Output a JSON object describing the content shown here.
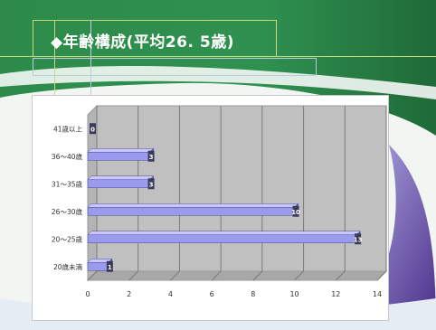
{
  "slide": {
    "title": "◆年齢構成(平均26. 5歳)",
    "colors": {
      "header_green": "#2d8a4a",
      "header_dark": "#1f6a38",
      "accent_line": "#c9d97a",
      "swoosh_purple": "#5a3e9a"
    }
  },
  "chart_data": {
    "type": "bar",
    "orientation": "horizontal",
    "style": "3d",
    "categories": [
      "41歳以上",
      "36～40歳",
      "31～35歳",
      "26～30歳",
      "20～25歳",
      "20歳未満"
    ],
    "values": [
      0,
      3,
      3,
      10,
      13,
      1
    ],
    "data_labels": [
      "0",
      "3",
      "3",
      "10",
      "13",
      "1"
    ],
    "x_ticks": [
      "0",
      "2",
      "4",
      "6",
      "8",
      "10",
      "12",
      "14"
    ],
    "xlim": [
      0,
      14
    ],
    "grid": true,
    "legend": "none",
    "colors": {
      "bar": "#9a9aee",
      "bar_top": "#c8c8ff",
      "bar_side": "#5c5cb0",
      "plot_back": "#c0c0c0",
      "plot_floor": "#a8a8a8",
      "grid": "#7a7a7a",
      "label_box": "#3a3a5a"
    }
  }
}
